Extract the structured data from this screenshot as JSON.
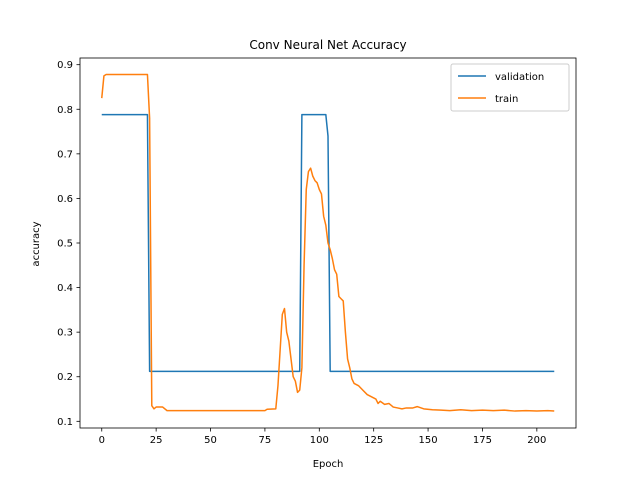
{
  "chart_data": {
    "type": "line",
    "title": "Conv Neural Net Accuracy",
    "xlabel": "Epoch",
    "ylabel": "accuracy",
    "xlim": [
      -10,
      218
    ],
    "ylim": [
      0.085,
      0.915
    ],
    "xticks": [
      0,
      25,
      50,
      75,
      100,
      125,
      150,
      175,
      200
    ],
    "yticks": [
      0.1,
      0.2,
      0.3,
      0.4,
      0.5,
      0.6,
      0.7,
      0.8,
      0.9
    ],
    "ytick_labels": [
      "0.1",
      "0.2",
      "0.3",
      "0.4",
      "0.5",
      "0.6",
      "0.7",
      "0.8",
      "0.9"
    ],
    "grid": false,
    "legend": "upper right",
    "series": [
      {
        "name": "validation",
        "color": "#1f77b4",
        "points": [
          [
            0,
            0.788
          ],
          [
            21,
            0.788
          ],
          [
            22,
            0.212
          ],
          [
            91,
            0.212
          ],
          [
            92,
            0.788
          ],
          [
            103,
            0.788
          ],
          [
            104,
            0.74
          ],
          [
            105,
            0.212
          ],
          [
            208,
            0.212
          ]
        ]
      },
      {
        "name": "train",
        "color": "#ff7f0e",
        "points": [
          [
            0,
            0.825
          ],
          [
            1,
            0.875
          ],
          [
            2,
            0.878
          ],
          [
            21,
            0.878
          ],
          [
            22,
            0.78
          ],
          [
            23,
            0.135
          ],
          [
            24,
            0.128
          ],
          [
            25,
            0.132
          ],
          [
            28,
            0.132
          ],
          [
            30,
            0.124
          ],
          [
            40,
            0.124
          ],
          [
            60,
            0.124
          ],
          [
            75,
            0.124
          ],
          [
            76,
            0.127
          ],
          [
            80,
            0.128
          ],
          [
            81,
            0.18
          ],
          [
            82,
            0.26
          ],
          [
            83,
            0.34
          ],
          [
            84,
            0.353
          ],
          [
            85,
            0.3
          ],
          [
            86,
            0.28
          ],
          [
            87,
            0.24
          ],
          [
            88,
            0.2
          ],
          [
            89,
            0.19
          ],
          [
            90,
            0.165
          ],
          [
            91,
            0.17
          ],
          [
            92,
            0.22
          ],
          [
            93,
            0.45
          ],
          [
            94,
            0.62
          ],
          [
            95,
            0.66
          ],
          [
            96,
            0.668
          ],
          [
            97,
            0.65
          ],
          [
            98,
            0.64
          ],
          [
            99,
            0.635
          ],
          [
            100,
            0.62
          ],
          [
            101,
            0.61
          ],
          [
            102,
            0.56
          ],
          [
            103,
            0.54
          ],
          [
            104,
            0.5
          ],
          [
            105,
            0.485
          ],
          [
            106,
            0.465
          ],
          [
            107,
            0.44
          ],
          [
            108,
            0.43
          ],
          [
            109,
            0.38
          ],
          [
            110,
            0.375
          ],
          [
            111,
            0.37
          ],
          [
            112,
            0.3
          ],
          [
            113,
            0.24
          ],
          [
            114,
            0.22
          ],
          [
            115,
            0.195
          ],
          [
            116,
            0.185
          ],
          [
            118,
            0.18
          ],
          [
            120,
            0.17
          ],
          [
            122,
            0.16
          ],
          [
            124,
            0.155
          ],
          [
            126,
            0.15
          ],
          [
            127,
            0.14
          ],
          [
            128,
            0.145
          ],
          [
            130,
            0.138
          ],
          [
            132,
            0.14
          ],
          [
            134,
            0.132
          ],
          [
            136,
            0.13
          ],
          [
            138,
            0.128
          ],
          [
            140,
            0.13
          ],
          [
            143,
            0.13
          ],
          [
            145,
            0.133
          ],
          [
            148,
            0.128
          ],
          [
            152,
            0.126
          ],
          [
            156,
            0.125
          ],
          [
            160,
            0.124
          ],
          [
            165,
            0.126
          ],
          [
            170,
            0.124
          ],
          [
            175,
            0.125
          ],
          [
            180,
            0.124
          ],
          [
            185,
            0.125
          ],
          [
            190,
            0.123
          ],
          [
            195,
            0.124
          ],
          [
            200,
            0.123
          ],
          [
            205,
            0.124
          ],
          [
            208,
            0.123
          ]
        ]
      }
    ]
  }
}
